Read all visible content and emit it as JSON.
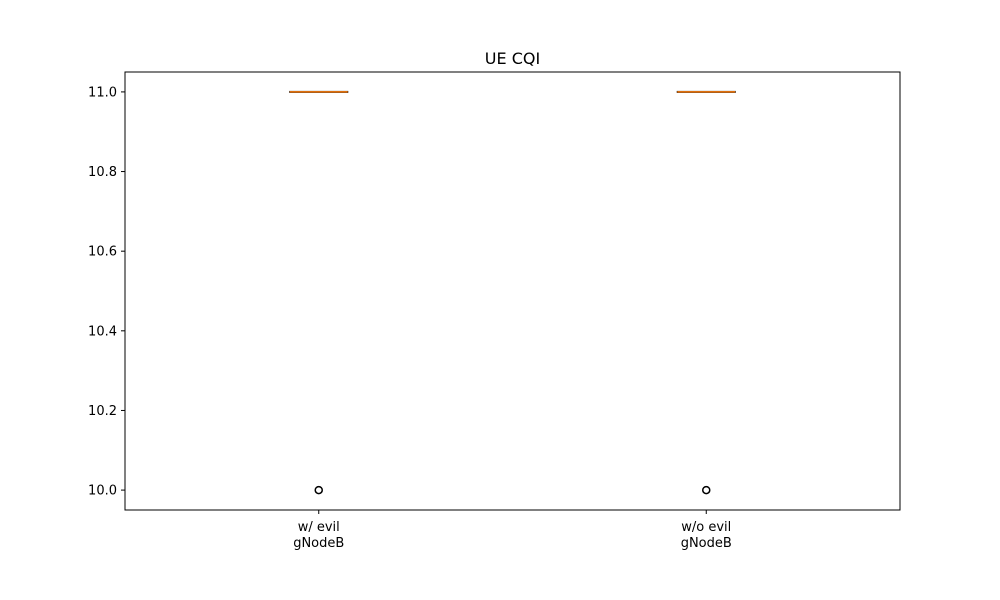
{
  "chart_data": {
    "type": "box",
    "title": "UE CQI",
    "xlabel": "",
    "ylabel": "",
    "ylim": [
      9.95,
      11.05
    ],
    "yticks": [
      10.0,
      10.2,
      10.4,
      10.6,
      10.8,
      11.0
    ],
    "ytick_labels": [
      "10.0",
      "10.2",
      "10.4",
      "10.6",
      "10.8",
      "11.0"
    ],
    "categories": [
      [
        "w/ evil",
        "gNodeB"
      ],
      [
        "w/o evil",
        "gNodeB"
      ]
    ],
    "boxes": [
      {
        "q1": 11.0,
        "median": 11.0,
        "q3": 11.0,
        "whisker_low": 11.0,
        "whisker_high": 11.0,
        "outliers": [
          10.0
        ]
      },
      {
        "q1": 11.0,
        "median": 11.0,
        "q3": 11.0,
        "whisker_low": 11.0,
        "whisker_high": 11.0,
        "outliers": [
          10.0
        ]
      }
    ],
    "grid": false,
    "colors": {
      "box": "#000000",
      "median": "#ff7f0e",
      "outlier": "#000000"
    }
  }
}
